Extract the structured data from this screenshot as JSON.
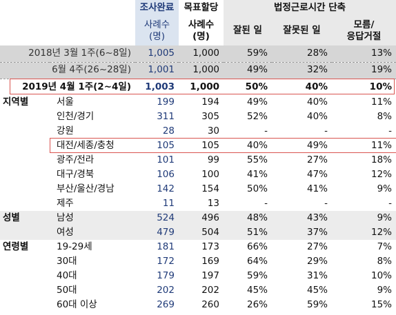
{
  "header": {
    "completed_line1": "조사완료",
    "completed_line2": "사례수",
    "completed_line3": "(명)",
    "target_line1": "목표할당",
    "target_line2": "사례수",
    "target_line3": "(명)",
    "group_title": "법정근로시간 단축",
    "good": "잘된 일",
    "bad": "잘못된 일",
    "dk_line1": "모름/",
    "dk_line2": "응답거절"
  },
  "trend_rows": [
    {
      "label": "2018년 3월 1주(6~8일)",
      "completed": "1,005",
      "target": "1,000",
      "good": "59%",
      "bad": "28%",
      "dk": "13%"
    },
    {
      "label": "6월 4주(26~28일)",
      "completed": "1,001",
      "target": "1,000",
      "good": "49%",
      "bad": "32%",
      "dk": "19%"
    }
  ],
  "current_row": {
    "label": "2019년 4월 1주(2~4일)",
    "completed": "1,003",
    "target": "1,000",
    "good": "50%",
    "bad": "40%",
    "dk": "10%"
  },
  "groups": {
    "region": "지역별",
    "gender": "성별",
    "age": "연령별"
  },
  "region_rows": [
    {
      "label": "서울",
      "completed": "199",
      "target": "194",
      "good": "49%",
      "bad": "40%",
      "dk": "11%"
    },
    {
      "label": "인천/경기",
      "completed": "311",
      "target": "305",
      "good": "52%",
      "bad": "40%",
      "dk": "8%"
    },
    {
      "label": "강원",
      "completed": "28",
      "target": "30",
      "good": "-",
      "bad": "-",
      "dk": "-"
    },
    {
      "label": "대전/세종/충청",
      "completed": "105",
      "target": "105",
      "good": "40%",
      "bad": "49%",
      "dk": "11%"
    },
    {
      "label": "광주/전라",
      "completed": "101",
      "target": "99",
      "good": "55%",
      "bad": "27%",
      "dk": "18%"
    },
    {
      "label": "대구/경북",
      "completed": "106",
      "target": "100",
      "good": "41%",
      "bad": "47%",
      "dk": "12%"
    },
    {
      "label": "부산/울산/경남",
      "completed": "142",
      "target": "154",
      "good": "50%",
      "bad": "41%",
      "dk": "9%"
    },
    {
      "label": "제주",
      "completed": "11",
      "target": "13",
      "good": "-",
      "bad": "-",
      "dk": "-"
    }
  ],
  "gender_rows": [
    {
      "label": "남성",
      "completed": "524",
      "target": "496",
      "good": "48%",
      "bad": "43%",
      "dk": "9%"
    },
    {
      "label": "여성",
      "completed": "479",
      "target": "504",
      "good": "51%",
      "bad": "37%",
      "dk": "12%"
    }
  ],
  "age_rows": [
    {
      "label": "19-29세",
      "completed": "181",
      "target": "173",
      "good": "66%",
      "bad": "27%",
      "dk": "7%"
    },
    {
      "label": "30대",
      "completed": "172",
      "target": "169",
      "good": "64%",
      "bad": "29%",
      "dk": "8%"
    },
    {
      "label": "40대",
      "completed": "179",
      "target": "197",
      "good": "59%",
      "bad": "31%",
      "dk": "10%"
    },
    {
      "label": "50대",
      "completed": "202",
      "target": "202",
      "good": "45%",
      "bad": "45%",
      "dk": "9%"
    },
    {
      "label": "60대 이상",
      "completed": "269",
      "target": "260",
      "good": "26%",
      "bad": "59%",
      "dk": "15%"
    }
  ],
  "colors": {
    "header_blue": "#dbe4f0",
    "count_blue": "#1f3a78",
    "trend_gray": "#d6d6d6",
    "gender_gray": "#ececec",
    "highlight_red": "#d9534f"
  }
}
